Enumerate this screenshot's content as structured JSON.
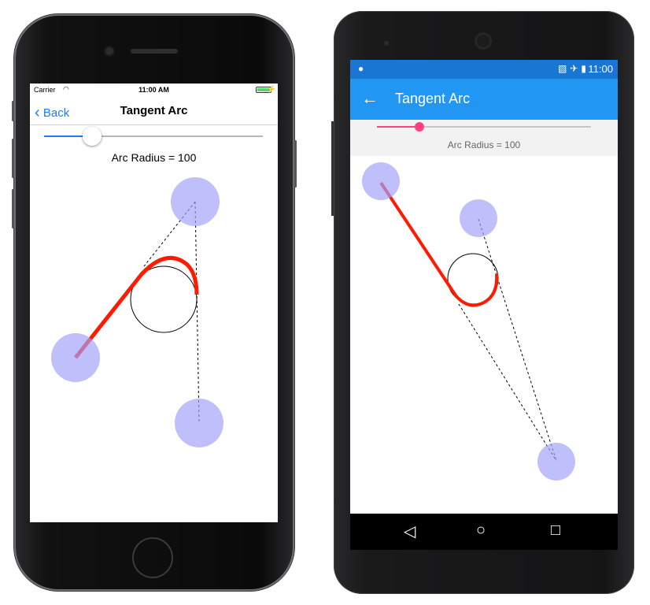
{
  "colors": {
    "ios_accent": "#1e7cf2",
    "android_primary": "#2196f3",
    "android_status": "#1976d2",
    "android_accent": "#ff4081",
    "touch_point": "#b9b9fb",
    "arc_stroke": "#ff1a00"
  },
  "ios": {
    "status": {
      "carrier": "Carrier",
      "wifi_icon": "wifi-icon",
      "time": "11:00 AM",
      "battery_icon": "battery-icon"
    },
    "nav": {
      "back_label": "Back",
      "back_icon": "chevron-left-icon",
      "title": "Tangent Arc"
    },
    "slider": {
      "value_fraction": 0.22
    },
    "label": "Arc Radius = 100"
  },
  "android": {
    "status": {
      "time": "11:00",
      "icons": [
        "android-debug-icon",
        "no-sim-icon",
        "airplane-icon",
        "battery-icon"
      ]
    },
    "toolbar": {
      "back_icon": "arrow-left-icon",
      "title": "Tangent Arc"
    },
    "slider": {
      "value_fraction": 0.2
    },
    "label": "Arc Radius = 100",
    "navbar": [
      "back-triangle-icon",
      "home-circle-icon",
      "recents-square-icon"
    ]
  }
}
